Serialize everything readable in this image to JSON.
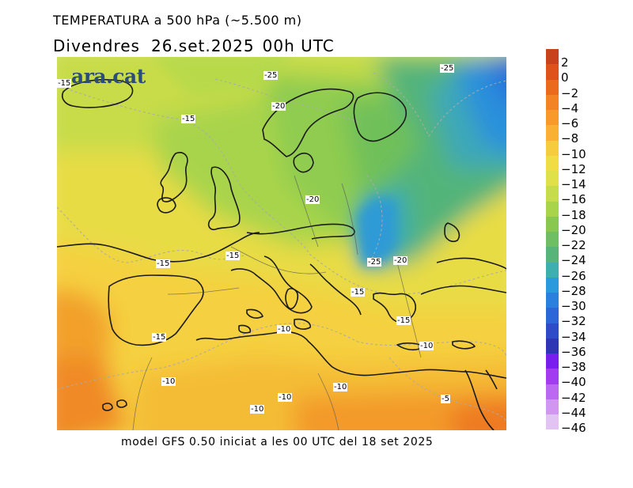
{
  "title": {
    "line1": "TEMPERATURA a 500 hPa (~5.500 m)",
    "day": "Divendres",
    "date": "26.set.2025",
    "time": "00h UTC"
  },
  "logo": "ara.cat",
  "footer": "model GFS 0.50 iniciat a les 00 UTC del 18 set 2025",
  "legend": {
    "labels": [
      "2",
      "0",
      "−2",
      "−4",
      "−6",
      "−8",
      "−10",
      "−12",
      "−14",
      "−16",
      "−18",
      "−20",
      "−22",
      "−24",
      "−26",
      "−28",
      "−30",
      "−32",
      "−34",
      "−36",
      "−38",
      "−40",
      "−42",
      "−44",
      "−46"
    ],
    "colors": [
      "#c8421e",
      "#e0521c",
      "#ec6a1e",
      "#f38424",
      "#f79a2a",
      "#f9b134",
      "#f7cc3c",
      "#f1dc44",
      "#e0e048",
      "#c6dc4a",
      "#a8d44c",
      "#88c850",
      "#6ebe62",
      "#58b478",
      "#3faeae",
      "#2a9adc",
      "#2a80dc",
      "#2d66d6",
      "#2f4cc8",
      "#2f36b4",
      "#7a1ef0",
      "#a23cf0",
      "#bc68f0",
      "#d096f0",
      "#e2c4f4"
    ]
  },
  "contour_labels": [
    {
      "id": "a",
      "text": "-15"
    },
    {
      "id": "b",
      "text": "-25"
    },
    {
      "id": "c",
      "text": "-25"
    },
    {
      "id": "d",
      "text": "-20"
    },
    {
      "id": "e",
      "text": "-15"
    },
    {
      "id": "f",
      "text": "-20"
    },
    {
      "id": "g",
      "text": "-15"
    },
    {
      "id": "h",
      "text": "-15"
    },
    {
      "id": "i",
      "text": "-25"
    },
    {
      "id": "j",
      "text": "-20"
    },
    {
      "id": "k",
      "text": "-15"
    },
    {
      "id": "l",
      "text": "-15"
    },
    {
      "id": "m",
      "text": "-10"
    },
    {
      "id": "n",
      "text": "-15"
    },
    {
      "id": "o",
      "text": "-10"
    },
    {
      "id": "p",
      "text": "-10"
    },
    {
      "id": "q",
      "text": "-10"
    },
    {
      "id": "r",
      "text": "-10"
    },
    {
      "id": "s",
      "text": "-10"
    },
    {
      "id": "t",
      "text": "-5"
    }
  ]
}
